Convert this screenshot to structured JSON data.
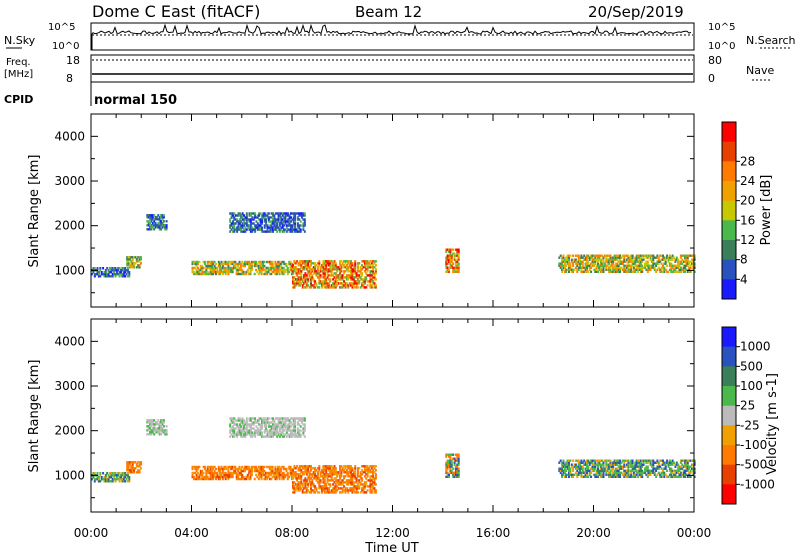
{
  "header": {
    "title": "Dome C East (fitACF)",
    "beam": "Beam 12",
    "date": "20/Sep/2019"
  },
  "summary": {
    "nsky_label": "N.Sky",
    "nsearch_label": "N.Search",
    "freq_label_line1": "Freq.",
    "freq_label_line2": "[MHz]",
    "nave_label": "Nave",
    "cpid_label": "CPID",
    "cpid_value": "normal 150",
    "noise_ticks": [
      "10^5",
      "10^0"
    ],
    "freq_ticks": [
      "18",
      "8"
    ],
    "nave_ticks": [
      "80",
      "0"
    ]
  },
  "chart_data": [
    {
      "type": "heatmap",
      "title": "",
      "xlabel": "",
      "ylabel": "Slant Range [km]",
      "xlim": [
        0,
        24
      ],
      "ylim": [
        180,
        4500
      ],
      "yticks": [
        1000,
        2000,
        3000,
        4000
      ],
      "colorbar": {
        "label": "Power [dB]",
        "range": [
          0,
          32
        ],
        "ticks": [
          "4",
          "8",
          "12",
          "16",
          "20",
          "24",
          "28"
        ],
        "colors": [
          "#1a1aff",
          "#2a52be",
          "#3a7f5a",
          "#4bb84b",
          "#c8c800",
          "#f0a000",
          "#ff7a00",
          "#e84000",
          "#ff0000"
        ]
      },
      "echo_regions": [
        {
          "t0": 0.0,
          "t1": 1.5,
          "r0": 850,
          "r1": 1050,
          "level": "low"
        },
        {
          "t0": 1.4,
          "t1": 2.0,
          "r0": 1050,
          "r1": 1300,
          "level": "medium"
        },
        {
          "t0": 2.2,
          "t1": 3.0,
          "r0": 1900,
          "r1": 2250,
          "level": "low"
        },
        {
          "t0": 4.0,
          "t1": 8.0,
          "r0": 900,
          "r1": 1200,
          "level": "medium"
        },
        {
          "t0": 5.5,
          "t1": 8.5,
          "r0": 1850,
          "r1": 2300,
          "level": "low"
        },
        {
          "t0": 8.0,
          "t1": 11.3,
          "r0": 600,
          "r1": 1200,
          "level": "high"
        },
        {
          "t0": 14.1,
          "t1": 14.6,
          "r0": 950,
          "r1": 1450,
          "level": "high"
        },
        {
          "t0": 18.6,
          "t1": 24.0,
          "r0": 950,
          "r1": 1350,
          "level": "medium"
        }
      ]
    },
    {
      "type": "heatmap",
      "title": "",
      "xlabel": "Time UT",
      "ylabel": "Slant Range [km]",
      "xlim": [
        0,
        24
      ],
      "ylim": [
        180,
        4500
      ],
      "xticks": [
        "00:00",
        "04:00",
        "08:00",
        "12:00",
        "16:00",
        "20:00",
        "00:00"
      ],
      "yticks": [
        1000,
        2000,
        3000,
        4000
      ],
      "colorbar": {
        "label": "Velocity [m s-1]",
        "ticks": [
          "1000",
          "500",
          "100",
          "25",
          "-25",
          "-100",
          "-500",
          "-1000"
        ],
        "colors": [
          "#1a1aff",
          "#2a52be",
          "#3a7f5a",
          "#4bb84b",
          "#bbbbbb",
          "#f0a000",
          "#ff7a00",
          "#e84000",
          "#ff0000"
        ]
      },
      "echo_regions": [
        {
          "t0": 0.0,
          "t1": 1.5,
          "r0": 850,
          "r1": 1050,
          "level": "toward"
        },
        {
          "t0": 1.4,
          "t1": 2.0,
          "r0": 1050,
          "r1": 1300,
          "level": "away"
        },
        {
          "t0": 2.2,
          "t1": 3.0,
          "r0": 1900,
          "r1": 2250,
          "level": "near-zero"
        },
        {
          "t0": 4.0,
          "t1": 8.0,
          "r0": 900,
          "r1": 1200,
          "level": "away"
        },
        {
          "t0": 5.5,
          "t1": 8.5,
          "r0": 1850,
          "r1": 2300,
          "level": "near-zero"
        },
        {
          "t0": 8.0,
          "t1": 11.3,
          "r0": 600,
          "r1": 1200,
          "level": "away"
        },
        {
          "t0": 14.1,
          "t1": 14.6,
          "r0": 950,
          "r1": 1450,
          "level": "mixed"
        },
        {
          "t0": 18.6,
          "t1": 24.0,
          "r0": 950,
          "r1": 1350,
          "level": "toward"
        }
      ]
    }
  ]
}
